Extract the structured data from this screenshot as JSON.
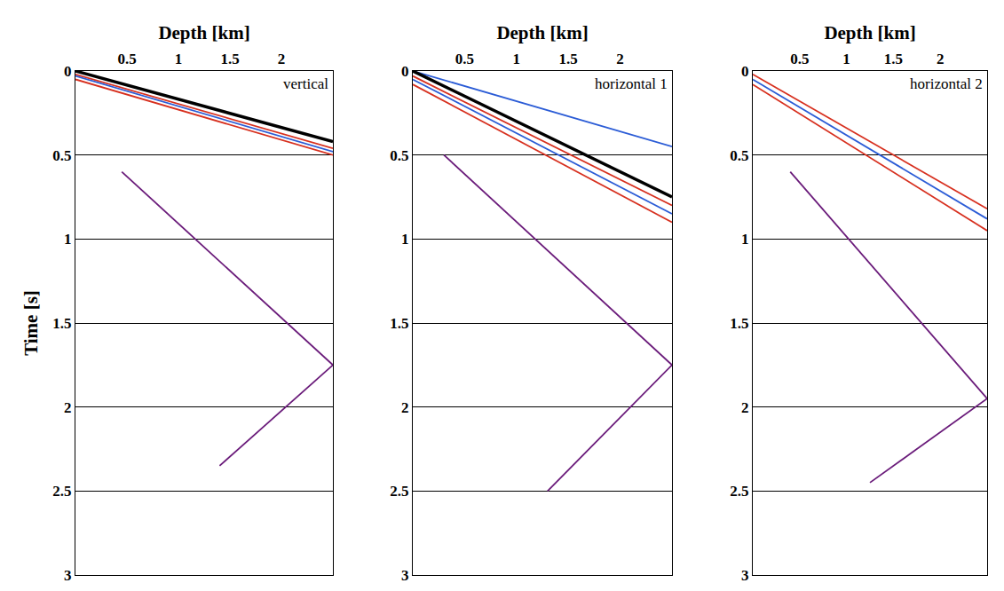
{
  "chart_data": [
    {
      "type": "line",
      "title": "vertical",
      "xlabel": "Depth [km]",
      "ylabel": "Time [s]",
      "xlim": [
        0,
        2.5
      ],
      "xticks": [
        0.5,
        1,
        1.5,
        2
      ],
      "ylim": [
        3,
        0
      ],
      "yticks": [
        0,
        0.5,
        1,
        1.5,
        2,
        2.5,
        3
      ],
      "grid": "y",
      "series": [
        {
          "color": "#d7301f",
          "line_style": "solid",
          "x": [
            0,
            2.5
          ],
          "values": [
            0.02,
            0.46
          ]
        },
        {
          "color": "#2b5cd6",
          "line_style": "solid",
          "x": [
            0,
            2.5
          ],
          "values": [
            0.03,
            0.48
          ]
        },
        {
          "color": "#d7301f",
          "line_style": "solid",
          "x": [
            0,
            2.5
          ],
          "values": [
            0.05,
            0.5
          ]
        },
        {
          "color": "#6a1b7a",
          "line_style": "solid",
          "x": [
            0.45,
            2.5
          ],
          "values": [
            0.6,
            1.75
          ]
        },
        {
          "color": "#6a1b7a",
          "line_style": "solid",
          "x": [
            2.5,
            1.4
          ],
          "values": [
            1.75,
            2.35
          ]
        },
        {
          "color": "#000000",
          "line_style": "solid",
          "x": [
            0,
            2.5
          ],
          "values": [
            0,
            0.42
          ]
        }
      ]
    },
    {
      "type": "line",
      "title": "horizontal 1",
      "xlabel": "Depth [km]",
      "xlim": [
        0,
        2.5
      ],
      "xticks": [
        0.5,
        1,
        1.5,
        2
      ],
      "ylim": [
        3,
        0
      ],
      "yticks": [
        0,
        0.5,
        1,
        1.5,
        2,
        2.5,
        3
      ],
      "grid": "y",
      "series": [
        {
          "color": "#2b5cd6",
          "line_style": "solid",
          "x": [
            0,
            2.5
          ],
          "values": [
            0.0,
            0.45
          ]
        },
        {
          "color": "#d7301f",
          "line_style": "solid",
          "x": [
            0,
            2.5
          ],
          "values": [
            0.03,
            0.8
          ]
        },
        {
          "color": "#2b5cd6",
          "line_style": "solid",
          "x": [
            0,
            2.5
          ],
          "values": [
            0.05,
            0.85
          ]
        },
        {
          "color": "#d7301f",
          "line_style": "solid",
          "x": [
            0,
            2.5
          ],
          "values": [
            0.08,
            0.9
          ]
        },
        {
          "color": "#6a1b7a",
          "line_style": "solid",
          "x": [
            0.3,
            2.5
          ],
          "values": [
            0.5,
            1.75
          ]
        },
        {
          "color": "#6a1b7a",
          "line_style": "solid",
          "x": [
            2.5,
            1.3
          ],
          "values": [
            1.75,
            2.5
          ]
        },
        {
          "color": "#000000",
          "line_style": "solid",
          "x": [
            0,
            2.5
          ],
          "values": [
            0,
            0.75
          ]
        }
      ]
    },
    {
      "type": "line",
      "title": "horizontal 2",
      "xlabel": "Depth [km]",
      "xlim": [
        0,
        2.5
      ],
      "xticks": [
        0.5,
        1,
        1.5,
        2
      ],
      "ylim": [
        3,
        0
      ],
      "yticks": [
        0,
        0.5,
        1,
        1.5,
        2,
        2.5,
        3
      ],
      "grid": "y",
      "series": [
        {
          "color": "#d7301f",
          "line_style": "solid",
          "x": [
            0,
            2.5
          ],
          "values": [
            0.02,
            0.82
          ]
        },
        {
          "color": "#2b5cd6",
          "line_style": "solid",
          "x": [
            0,
            2.5
          ],
          "values": [
            0.05,
            0.88
          ]
        },
        {
          "color": "#d7301f",
          "line_style": "solid",
          "x": [
            0,
            2.5
          ],
          "values": [
            0.08,
            0.95
          ]
        },
        {
          "color": "#6a1b7a",
          "line_style": "solid",
          "x": [
            0.4,
            2.5
          ],
          "values": [
            0.6,
            1.95
          ]
        },
        {
          "color": "#6a1b7a",
          "line_style": "solid",
          "x": [
            2.5,
            1.25
          ],
          "values": [
            1.95,
            2.45
          ]
        }
      ]
    }
  ]
}
